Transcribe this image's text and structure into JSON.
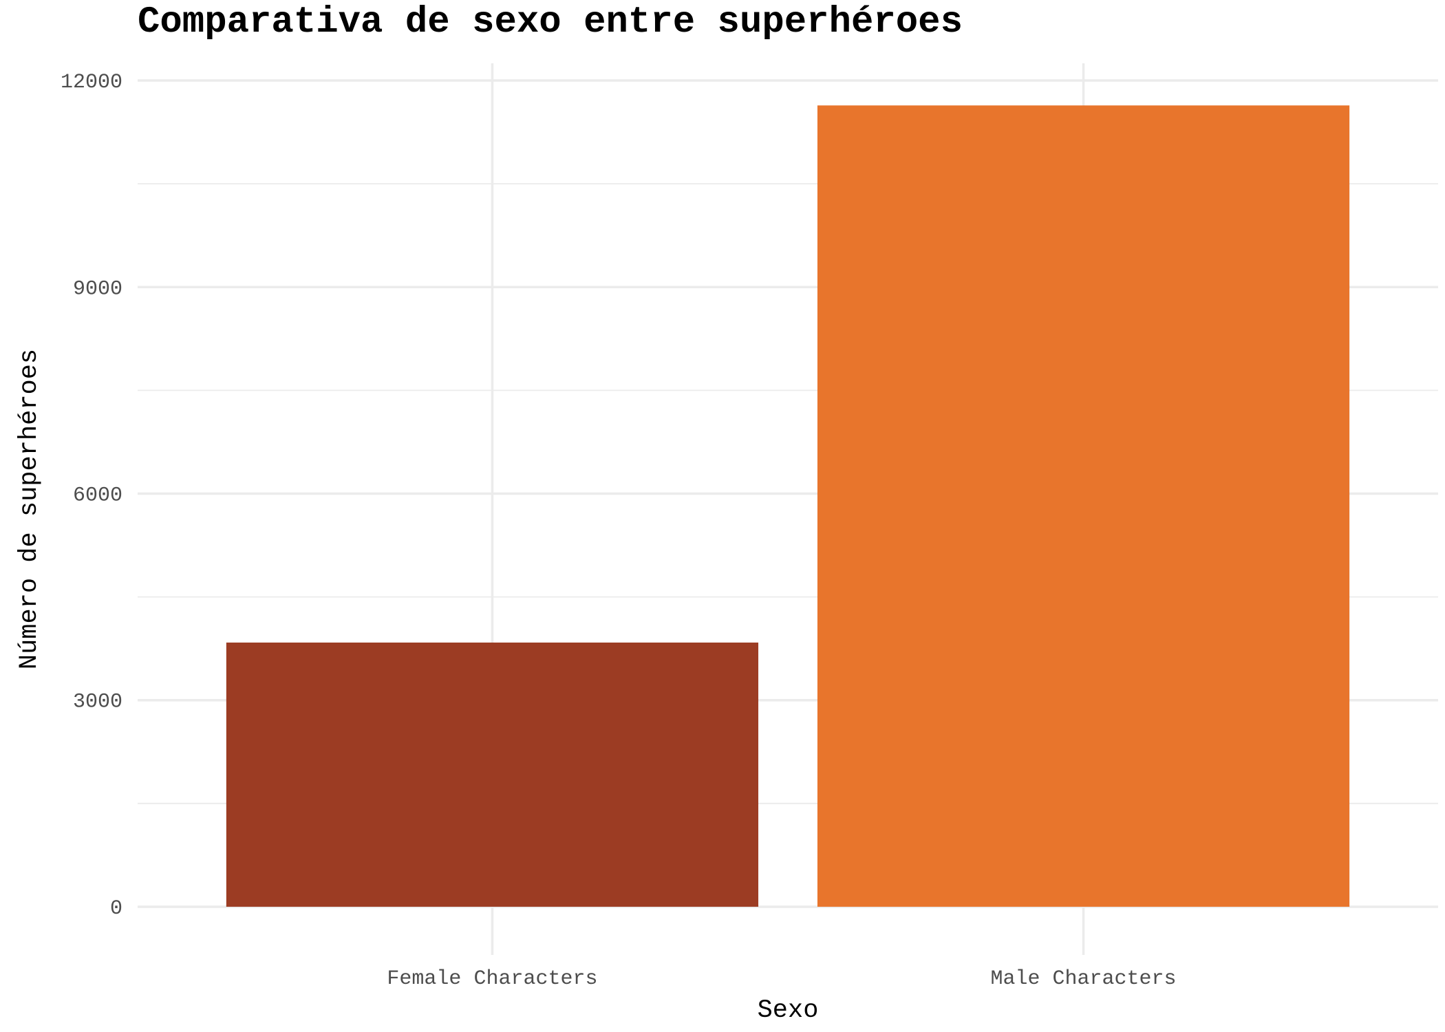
{
  "chart_data": {
    "type": "bar",
    "title": "Comparativa de sexo entre superhéroes",
    "xlabel": "Sexo",
    "ylabel": "Número de superhéroes",
    "categories": [
      "Female Characters",
      "Male Characters"
    ],
    "values": [
      3837,
      11638
    ],
    "colors": [
      "#9C3C23",
      "#E8752C"
    ],
    "ylim": [
      -700,
      12250
    ],
    "yticks": [
      0,
      3000,
      6000,
      9000,
      12000
    ],
    "ytick_labels": [
      "0",
      "3000",
      "6000",
      "9000",
      "12000"
    ],
    "grid": true,
    "legend": "none"
  }
}
